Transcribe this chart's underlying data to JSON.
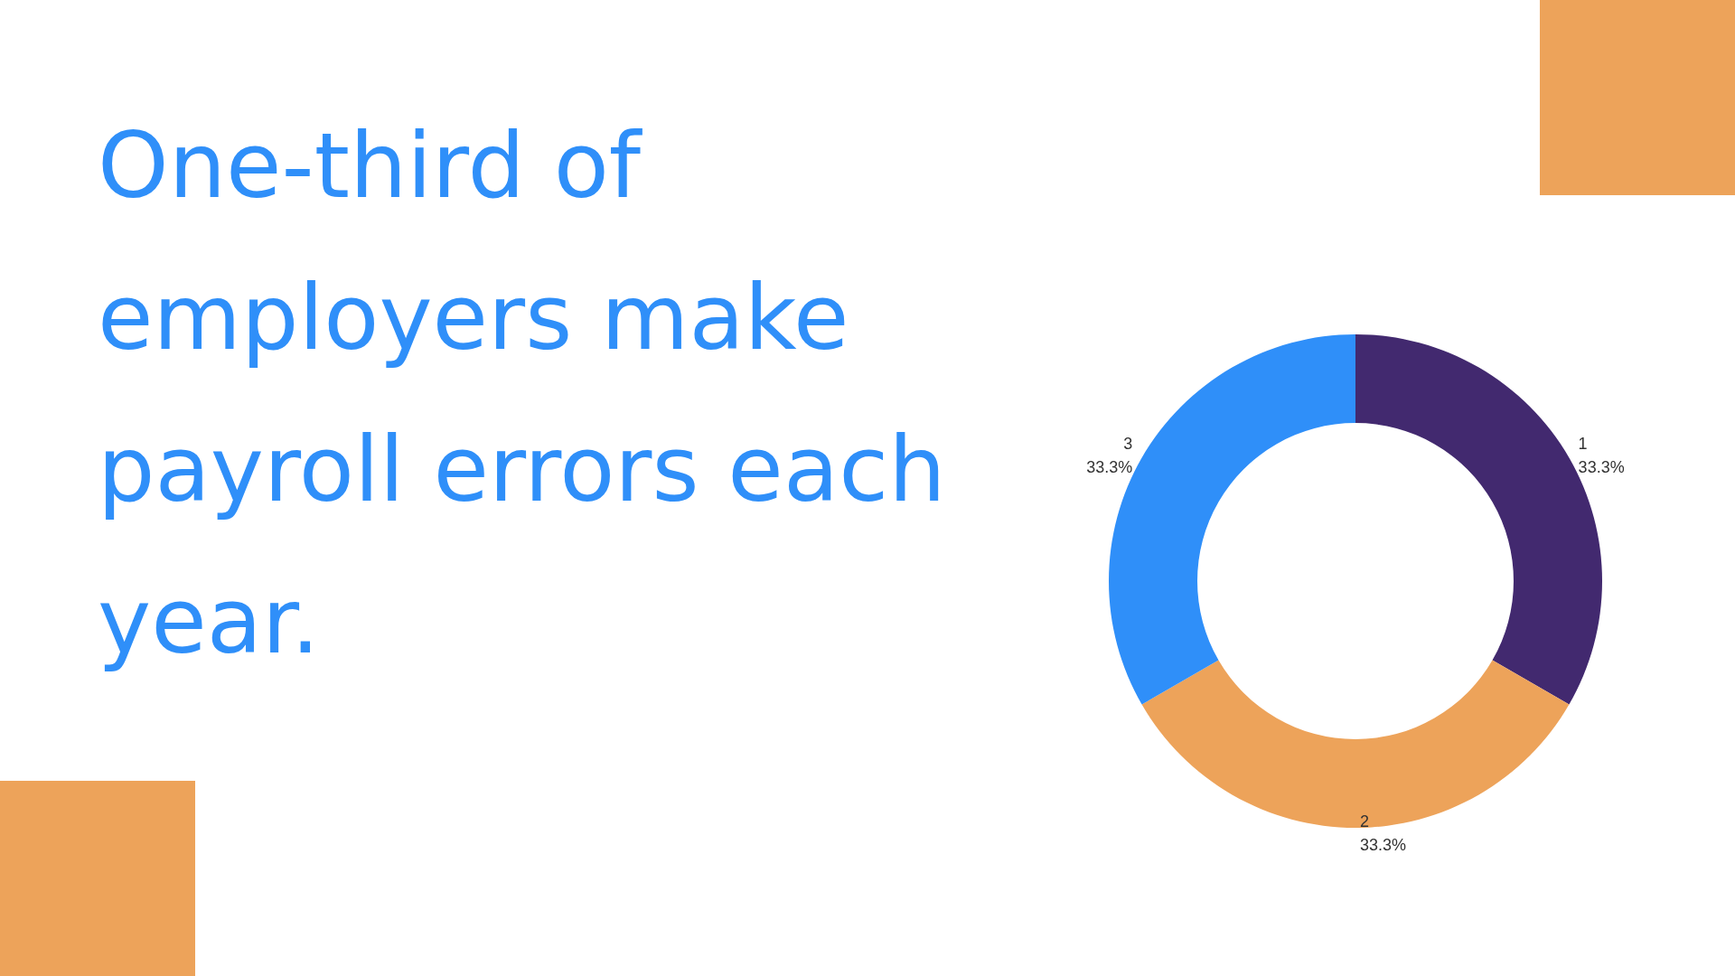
{
  "chart_data": {
    "type": "donut",
    "title": "One-third of employers make payroll errors each year.",
    "categories": [
      "1",
      "2",
      "3"
    ],
    "values": [
      33.3,
      33.3,
      33.3
    ],
    "colors": [
      "#42296f",
      "#eda35a",
      "#2f8ff9"
    ],
    "value_labels": [
      "33.3%",
      "33.3%",
      "33.3%"
    ],
    "legend": false
  }
}
